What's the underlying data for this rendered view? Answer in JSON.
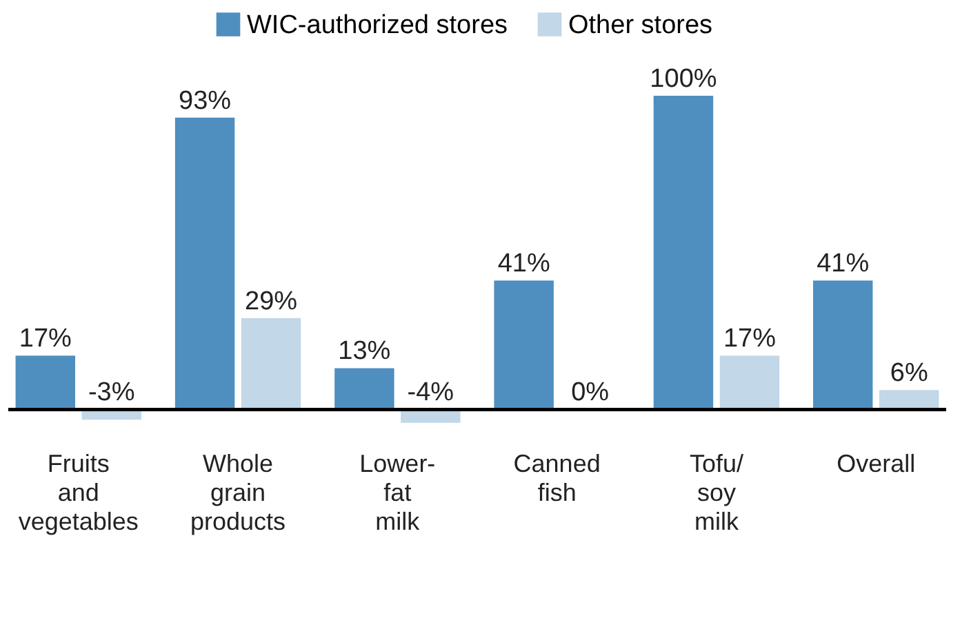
{
  "chart_data": {
    "type": "bar",
    "categories": [
      "Fruits and vegetables",
      "Whole grain products",
      "Lower-fat milk",
      "Canned fish",
      "Tofu/soy milk",
      "Overall"
    ],
    "series": [
      {
        "name": "WIC-authorized stores",
        "color": "#4f8fc0",
        "values": [
          17,
          93,
          13,
          41,
          100,
          41
        ],
        "value_labels": [
          "17%",
          "93%",
          "13%",
          "41%",
          "100%",
          "41%"
        ]
      },
      {
        "name": "Other stores",
        "color": "#c2d7e8",
        "values": [
          -3,
          29,
          -4,
          0,
          17,
          6
        ],
        "value_labels": [
          "-3%",
          "29%",
          "-4%",
          "0%",
          "17%",
          "6%"
        ]
      }
    ],
    "legend": "top"
  }
}
